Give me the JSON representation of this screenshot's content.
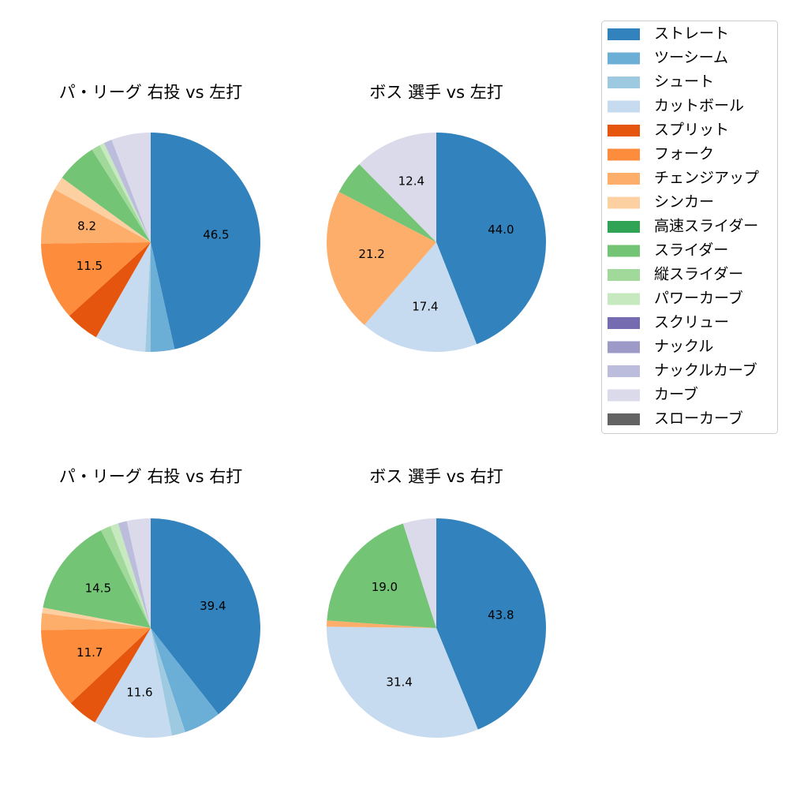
{
  "legend": {
    "placement": "top-right",
    "items": [
      {
        "label": "ストレート",
        "color": "#3182bd"
      },
      {
        "label": "ツーシーム",
        "color": "#6baed6"
      },
      {
        "label": "シュート",
        "color": "#9ecae1"
      },
      {
        "label": "カットボール",
        "color": "#c6dbef"
      },
      {
        "label": "スプリット",
        "color": "#e6550d"
      },
      {
        "label": "フォーク",
        "color": "#fd8d3c"
      },
      {
        "label": "チェンジアップ",
        "color": "#fdae6b"
      },
      {
        "label": "シンカー",
        "color": "#fdd0a2"
      },
      {
        "label": "高速スライダー",
        "color": "#31a354"
      },
      {
        "label": "スライダー",
        "color": "#74c476"
      },
      {
        "label": "縦スライダー",
        "color": "#a1d99b"
      },
      {
        "label": "パワーカーブ",
        "color": "#c7e9c0"
      },
      {
        "label": "スクリュー",
        "color": "#756bb1"
      },
      {
        "label": "ナックル",
        "color": "#9e9ac8"
      },
      {
        "label": "ナックルカーブ",
        "color": "#bcbddc"
      },
      {
        "label": "カーブ",
        "color": "#dadaeb"
      },
      {
        "label": "スローカーブ",
        "color": "#636363"
      }
    ]
  },
  "chart_data": [
    {
      "type": "pie",
      "title": "パ・リーグ 右投 vs 左打",
      "slices": [
        {
          "category": "ストレート",
          "value": 46.5,
          "label": "46.5"
        },
        {
          "category": "ツーシーム",
          "value": 3.5
        },
        {
          "category": "シュート",
          "value": 0.8
        },
        {
          "category": "カットボール",
          "value": 7.5
        },
        {
          "category": "スプリット",
          "value": 5.0
        },
        {
          "category": "フォーク",
          "value": 11.5,
          "label": "11.5"
        },
        {
          "category": "チェンジアップ",
          "value": 8.2,
          "label": "8.2"
        },
        {
          "category": "シンカー",
          "value": 2.0
        },
        {
          "category": "スライダー",
          "value": 6.0
        },
        {
          "category": "縦スライダー",
          "value": 1.3
        },
        {
          "category": "パワーカーブ",
          "value": 0.7
        },
        {
          "category": "ナックルカーブ",
          "value": 1.2
        },
        {
          "category": "カーブ",
          "value": 5.8
        }
      ]
    },
    {
      "type": "pie",
      "title": "ボス 選手 vs 左打",
      "slices": [
        {
          "category": "ストレート",
          "value": 44.0,
          "label": "44.0"
        },
        {
          "category": "カットボール",
          "value": 17.4,
          "label": "17.4"
        },
        {
          "category": "チェンジアップ",
          "value": 21.2,
          "label": "21.2"
        },
        {
          "category": "スライダー",
          "value": 5.0
        },
        {
          "category": "カーブ",
          "value": 12.4,
          "label": "12.4"
        }
      ]
    },
    {
      "type": "pie",
      "title": "パ・リーグ 右投 vs 右打",
      "slices": [
        {
          "category": "ストレート",
          "value": 39.4,
          "label": "39.4"
        },
        {
          "category": "ツーシーム",
          "value": 5.5
        },
        {
          "category": "シュート",
          "value": 2.0
        },
        {
          "category": "カットボール",
          "value": 11.6,
          "label": "11.6"
        },
        {
          "category": "スプリット",
          "value": 4.5
        },
        {
          "category": "フォーク",
          "value": 11.7,
          "label": "11.7"
        },
        {
          "category": "チェンジアップ",
          "value": 2.5
        },
        {
          "category": "シンカー",
          "value": 0.8
        },
        {
          "category": "スライダー",
          "value": 14.5,
          "label": "14.5"
        },
        {
          "category": "縦スライダー",
          "value": 1.5
        },
        {
          "category": "パワーカーブ",
          "value": 1.2
        },
        {
          "category": "ナックルカーブ",
          "value": 1.3
        },
        {
          "category": "カーブ",
          "value": 3.5
        }
      ]
    },
    {
      "type": "pie",
      "title": "ボス 選手 vs 右打",
      "slices": [
        {
          "category": "ストレート",
          "value": 43.8,
          "label": "43.8"
        },
        {
          "category": "カットボール",
          "value": 31.4,
          "label": "31.4"
        },
        {
          "category": "チェンジアップ",
          "value": 0.9
        },
        {
          "category": "スライダー",
          "value": 19.0,
          "label": "19.0"
        },
        {
          "category": "カーブ",
          "value": 4.9
        }
      ]
    }
  ]
}
